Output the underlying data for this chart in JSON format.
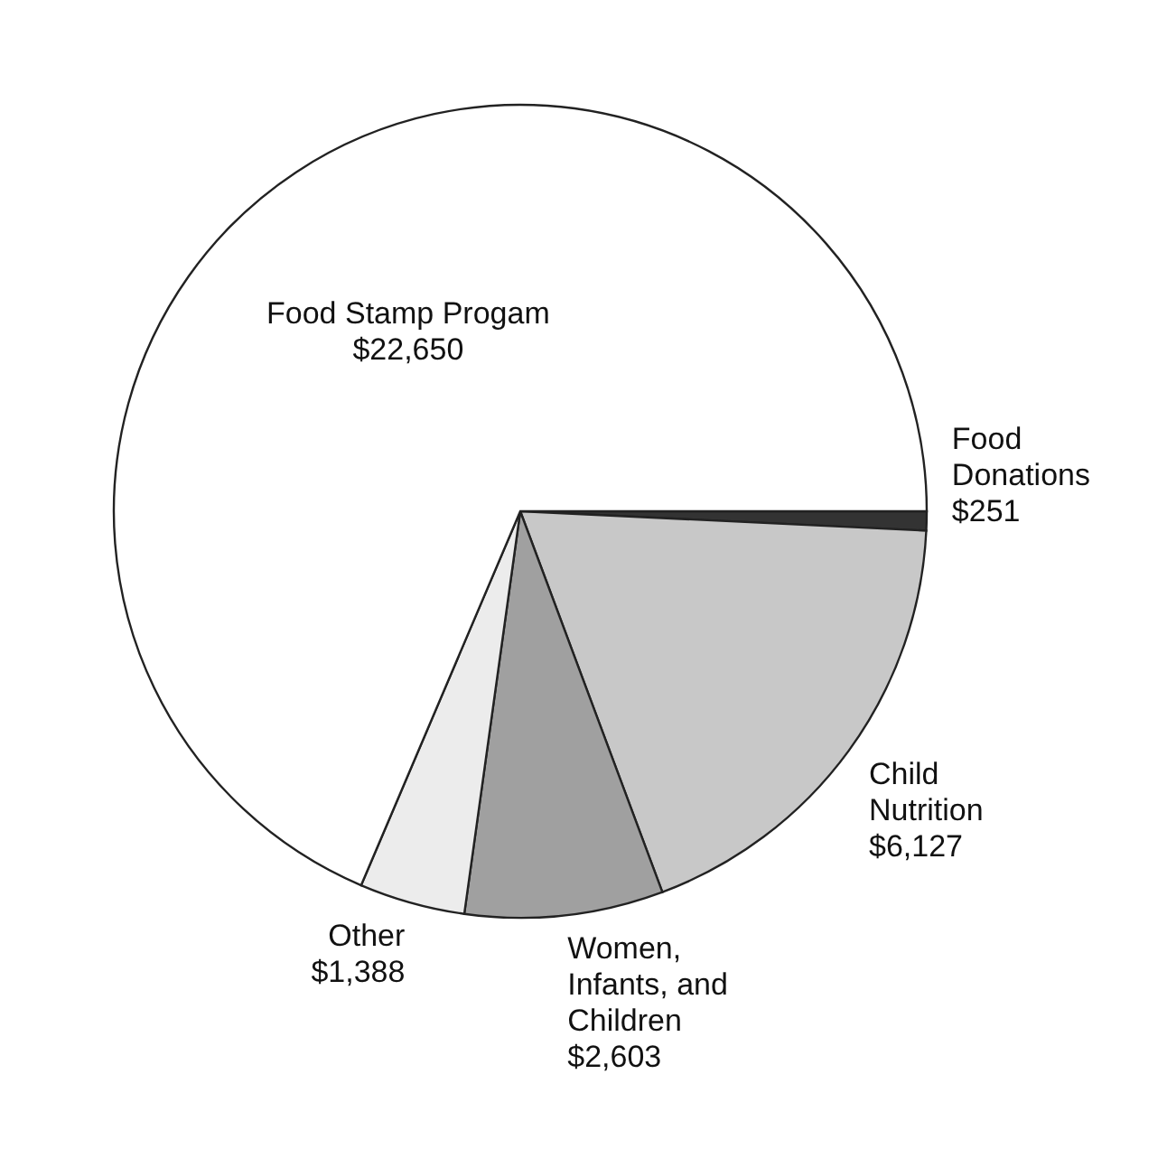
{
  "chart_data": {
    "type": "pie",
    "categories": [
      "Food Donations",
      "Child Nutrition",
      "Women, Infants, and Children",
      "Other",
      "Food Stamp Progam"
    ],
    "values": [
      251,
      6127,
      2603,
      1388,
      22650
    ],
    "value_labels": [
      "$251",
      "$6,127",
      "$2,603",
      "$1,388",
      "$22,650"
    ],
    "colors": [
      "#333333",
      "#c8c8c8",
      "#a0a0a0",
      "#ececec",
      "#ffffff"
    ],
    "legend": false
  }
}
